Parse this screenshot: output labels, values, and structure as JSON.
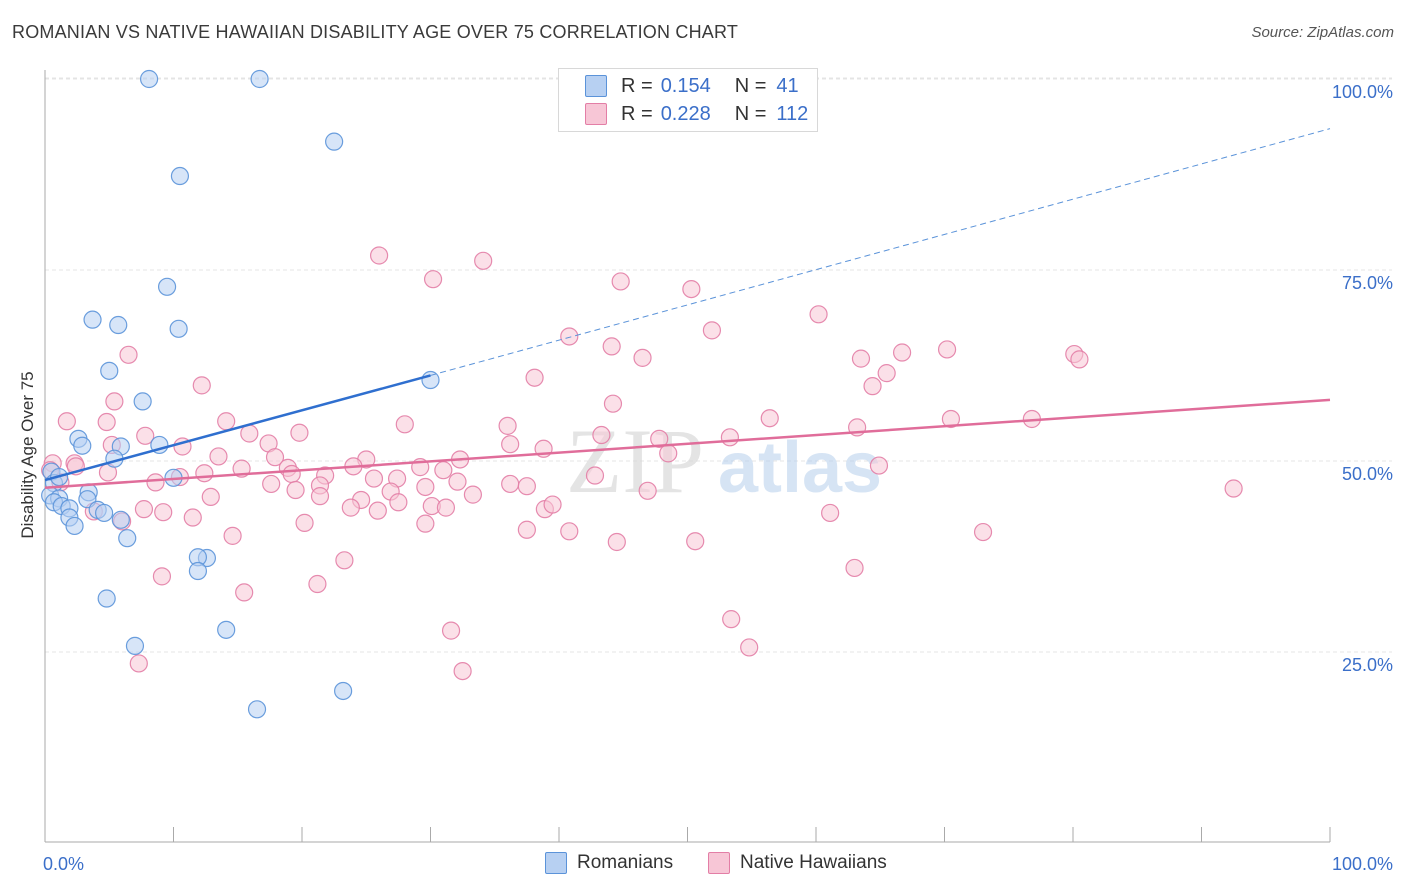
{
  "title": "ROMANIAN VS NATIVE HAWAIIAN DISABILITY AGE OVER 75 CORRELATION CHART",
  "source": "Source: ZipAtlas.com",
  "colors": {
    "blue": "#5b93d9",
    "blue_fill": "#b7d0f2",
    "pink": "#e37ea6",
    "pink_fill": "#f7c6d6",
    "accent_text": "#3b6fc9"
  },
  "legend": {
    "r_label": "R =",
    "n_label": "N =",
    "rows": [
      {
        "r": "0.154",
        "n": "41"
      },
      {
        "r": "0.228",
        "n": "112"
      }
    ]
  },
  "watermark": {
    "zip": "ZIP",
    "atlas": "atlas"
  },
  "chart_data": {
    "type": "scatter",
    "ylabel": "Disability Age Over 75",
    "xlim": [
      0,
      100
    ],
    "ylim": [
      0,
      105
    ],
    "x_tick_labels": {
      "left": "0.0%",
      "right": "100.0%"
    },
    "y_ticks": [
      {
        "value": 25,
        "label": "25.0%"
      },
      {
        "value": 50,
        "label": "50.0%"
      },
      {
        "value": 75,
        "label": "75.0%"
      },
      {
        "value": 100,
        "label": "100.0%"
      }
    ],
    "grid": true,
    "series": [
      {
        "name": "Romanians",
        "color": "#5b93d9",
        "trend": {
          "x0": 0,
          "y0": 47.5,
          "x1": 30,
          "y1": 61.2,
          "dash_to_x": 100,
          "dash_to_y": 93.5
        },
        "points": [
          [
            8.1,
            100.0
          ],
          [
            16.7,
            100.0
          ],
          [
            22.5,
            91.8
          ],
          [
            10.5,
            87.3
          ],
          [
            9.5,
            72.8
          ],
          [
            3.7,
            68.5
          ],
          [
            5.7,
            67.8
          ],
          [
            10.4,
            67.3
          ],
          [
            5.0,
            61.8
          ],
          [
            7.6,
            57.8
          ],
          [
            30.0,
            60.6
          ],
          [
            2.6,
            52.9
          ],
          [
            2.9,
            52.0
          ],
          [
            5.9,
            51.9
          ],
          [
            8.9,
            52.1
          ],
          [
            5.4,
            50.3
          ],
          [
            10.0,
            47.8
          ],
          [
            0.5,
            48.6
          ],
          [
            0.7,
            47.1
          ],
          [
            3.4,
            45.9
          ],
          [
            0.4,
            45.5
          ],
          [
            1.1,
            45.1
          ],
          [
            3.3,
            45.0
          ],
          [
            0.7,
            44.6
          ],
          [
            1.3,
            44.1
          ],
          [
            1.9,
            43.8
          ],
          [
            4.1,
            43.6
          ],
          [
            4.6,
            43.2
          ],
          [
            1.9,
            42.6
          ],
          [
            5.9,
            42.3
          ],
          [
            2.3,
            41.5
          ],
          [
            6.4,
            39.9
          ],
          [
            12.6,
            37.3
          ],
          [
            11.9,
            37.4
          ],
          [
            11.9,
            35.6
          ],
          [
            4.8,
            32.0
          ],
          [
            14.1,
            27.9
          ],
          [
            7.0,
            25.8
          ],
          [
            23.2,
            19.9
          ],
          [
            16.5,
            17.5
          ],
          [
            1.1,
            47.9
          ]
        ]
      },
      {
        "name": "Native Hawaiians",
        "color": "#e37ea6",
        "trend": {
          "x0": 0,
          "y0": 46.5,
          "x1": 100,
          "y1": 58.0
        },
        "points": [
          [
            26.0,
            76.9
          ],
          [
            30.2,
            73.8
          ],
          [
            34.1,
            76.2
          ],
          [
            44.8,
            73.5
          ],
          [
            50.3,
            72.5
          ],
          [
            60.2,
            69.2
          ],
          [
            40.8,
            66.3
          ],
          [
            51.9,
            67.1
          ],
          [
            44.1,
            65.0
          ],
          [
            46.5,
            63.5
          ],
          [
            66.7,
            64.2
          ],
          [
            70.2,
            64.6
          ],
          [
            80.1,
            64.0
          ],
          [
            80.5,
            63.3
          ],
          [
            63.5,
            63.4
          ],
          [
            6.5,
            63.9
          ],
          [
            65.5,
            61.5
          ],
          [
            38.1,
            60.9
          ],
          [
            12.2,
            59.9
          ],
          [
            64.4,
            59.8
          ],
          [
            5.4,
            57.8
          ],
          [
            44.2,
            57.5
          ],
          [
            1.7,
            55.2
          ],
          [
            4.8,
            55.1
          ],
          [
            14.1,
            55.2
          ],
          [
            28.0,
            54.8
          ],
          [
            36.0,
            54.6
          ],
          [
            56.4,
            55.6
          ],
          [
            63.2,
            54.4
          ],
          [
            70.5,
            55.5
          ],
          [
            76.8,
            55.5
          ],
          [
            15.9,
            53.6
          ],
          [
            7.8,
            53.3
          ],
          [
            19.8,
            53.7
          ],
          [
            43.3,
            53.4
          ],
          [
            47.8,
            52.9
          ],
          [
            53.3,
            53.1
          ],
          [
            17.4,
            52.3
          ],
          [
            5.2,
            52.1
          ],
          [
            10.7,
            51.9
          ],
          [
            36.2,
            52.2
          ],
          [
            38.8,
            51.6
          ],
          [
            48.5,
            51.0
          ],
          [
            13.5,
            50.6
          ],
          [
            17.9,
            50.5
          ],
          [
            25.0,
            50.2
          ],
          [
            0.6,
            49.7
          ],
          [
            2.3,
            49.7
          ],
          [
            32.3,
            50.2
          ],
          [
            0.4,
            48.8
          ],
          [
            2.4,
            49.3
          ],
          [
            4.9,
            48.5
          ],
          [
            15.3,
            49.0
          ],
          [
            18.9,
            49.1
          ],
          [
            19.2,
            48.3
          ],
          [
            24.0,
            49.3
          ],
          [
            29.2,
            49.2
          ],
          [
            31.0,
            48.8
          ],
          [
            64.9,
            49.4
          ],
          [
            12.4,
            48.4
          ],
          [
            10.5,
            47.9
          ],
          [
            21.8,
            48.1
          ],
          [
            42.8,
            48.1
          ],
          [
            32.1,
            47.3
          ],
          [
            36.2,
            47.0
          ],
          [
            37.5,
            46.7
          ],
          [
            25.6,
            47.7
          ],
          [
            27.4,
            47.7
          ],
          [
            1.2,
            47.2
          ],
          [
            8.6,
            47.2
          ],
          [
            17.6,
            47.0
          ],
          [
            21.4,
            46.8
          ],
          [
            29.6,
            46.6
          ],
          [
            46.9,
            46.1
          ],
          [
            26.9,
            46.0
          ],
          [
            33.3,
            45.6
          ],
          [
            21.4,
            45.4
          ],
          [
            12.9,
            45.3
          ],
          [
            24.6,
            44.9
          ],
          [
            27.5,
            44.6
          ],
          [
            30.1,
            44.1
          ],
          [
            23.8,
            43.9
          ],
          [
            25.9,
            43.5
          ],
          [
            31.2,
            43.9
          ],
          [
            7.7,
            43.7
          ],
          [
            9.2,
            43.3
          ],
          [
            38.9,
            43.7
          ],
          [
            39.5,
            44.3
          ],
          [
            61.1,
            43.2
          ],
          [
            3.8,
            43.4
          ],
          [
            11.5,
            42.6
          ],
          [
            6.0,
            42.1
          ],
          [
            29.6,
            41.8
          ],
          [
            37.5,
            41.0
          ],
          [
            73.0,
            40.7
          ],
          [
            20.2,
            41.9
          ],
          [
            14.6,
            40.2
          ],
          [
            40.8,
            40.8
          ],
          [
            50.6,
            39.5
          ],
          [
            44.5,
            39.4
          ],
          [
            23.3,
            37.0
          ],
          [
            63.0,
            36.0
          ],
          [
            9.1,
            34.9
          ],
          [
            21.2,
            33.9
          ],
          [
            15.5,
            32.8
          ],
          [
            53.4,
            29.3
          ],
          [
            31.6,
            27.8
          ],
          [
            54.8,
            25.6
          ],
          [
            7.3,
            23.5
          ],
          [
            32.5,
            22.5
          ],
          [
            92.5,
            46.4
          ],
          [
            19.5,
            46.2
          ]
        ]
      }
    ]
  }
}
